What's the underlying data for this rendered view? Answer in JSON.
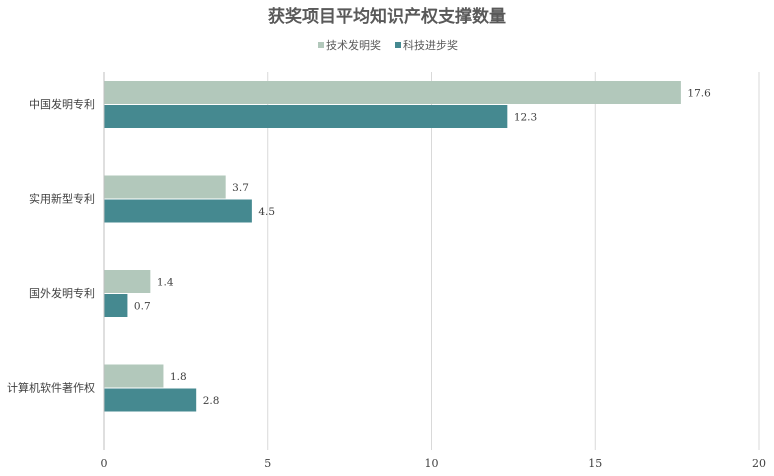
{
  "chart_data": {
    "type": "bar",
    "orientation": "horizontal",
    "title": "获奖项目平均知识产权支撑数量",
    "categories": [
      "中国发明专利",
      "实用新型专利",
      "国外发明专利",
      "计算机软件著作权"
    ],
    "series": [
      {
        "name": "技术发明奖",
        "color": "#b2c8bb",
        "values": [
          17.6,
          3.7,
          1.4,
          1.8
        ]
      },
      {
        "name": "科技进步奖",
        "color": "#458990",
        "values": [
          12.3,
          4.5,
          0.7,
          2.8
        ]
      }
    ],
    "xlim": [
      0,
      20
    ],
    "xticks": [
      0,
      5,
      10,
      15,
      20
    ],
    "grid": true,
    "legend_position": "top-center"
  }
}
